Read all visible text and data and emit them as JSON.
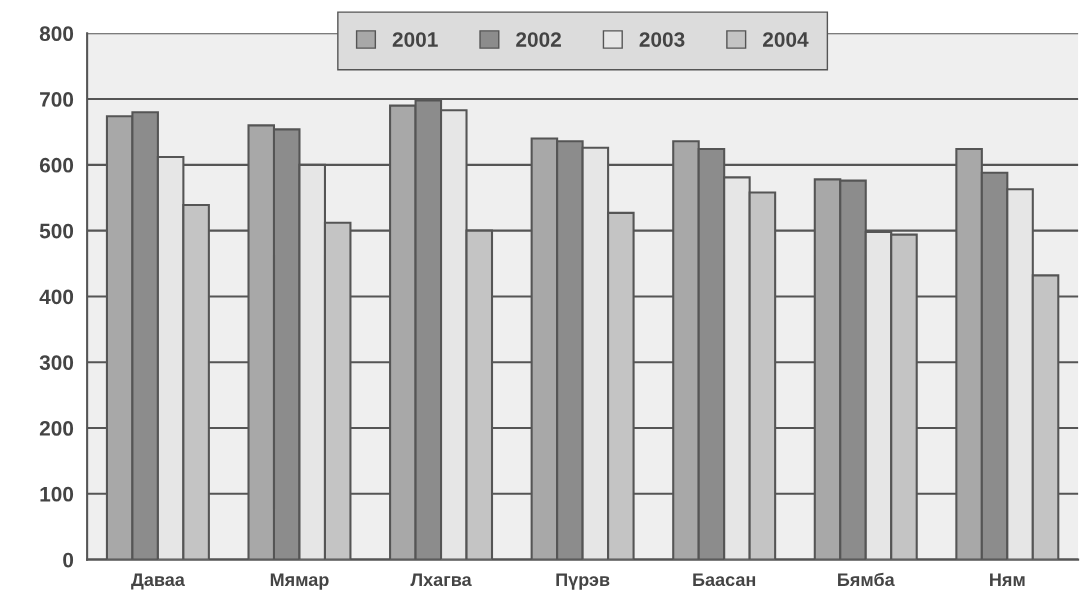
{
  "chart_data": {
    "type": "bar",
    "categories": [
      "Даваа",
      "Мямар",
      "Лхагва",
      "Пүрэв",
      "Баасан",
      "Бямба",
      "Ням"
    ],
    "series": [
      {
        "name": "2001",
        "color": "#a8a8a8",
        "values": [
          674,
          660,
          690,
          640,
          636,
          578,
          624
        ]
      },
      {
        "name": "2002",
        "color": "#8c8c8c",
        "values": [
          680,
          654,
          698,
          636,
          624,
          576,
          588
        ]
      },
      {
        "name": "2003",
        "color": "#e6e6e6",
        "values": [
          612,
          600,
          683,
          626,
          581,
          498,
          563
        ]
      },
      {
        "name": "2004",
        "color": "#c4c4c4",
        "values": [
          539,
          512,
          500,
          527,
          558,
          494,
          432
        ]
      }
    ],
    "ylim": [
      0,
      800
    ],
    "yticks": [
      0,
      100,
      200,
      300,
      400,
      500,
      600,
      700,
      800
    ],
    "grid": "y",
    "legend": "top"
  }
}
